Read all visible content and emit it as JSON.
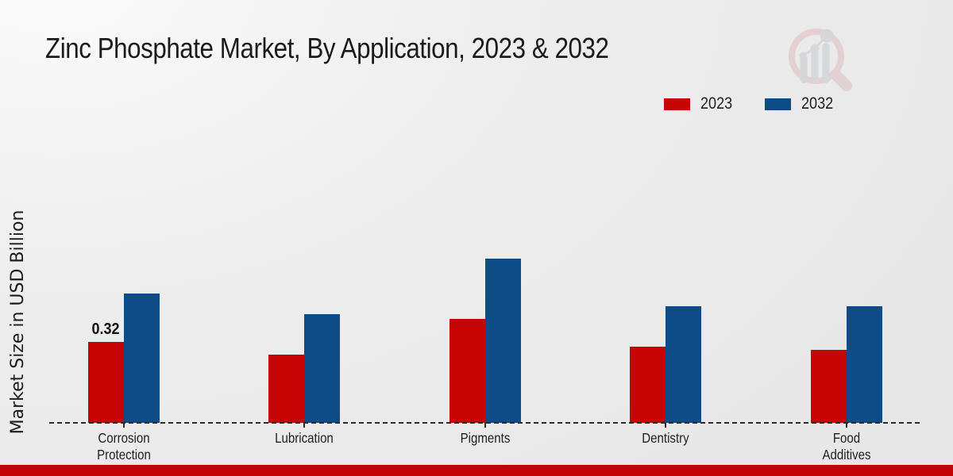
{
  "header": {
    "title": "Zinc Phosphate Market, By Application, 2023 & 2032"
  },
  "branding": {
    "logo_icon": "bar-chart-magnifier-watermark-logo"
  },
  "colors": {
    "series_2023": "#c80505",
    "series_2032": "#0e4c87",
    "footer_bar": "#c20404",
    "baseline": "#2a2a2a",
    "text": "#1b1b1b",
    "logo_ring_pink": "#e0bcc0",
    "logo_bars_gray": "#c6c8cc"
  },
  "chart_data": {
    "type": "bar",
    "title": "Zinc Phosphate Market, By Application, 2023 & 2032",
    "xlabel": "",
    "ylabel": "Market Size in USD Billion",
    "categories": [
      "Corrosion Protection",
      "Lubrication",
      "Pigments",
      "Dentistry",
      "Food Additives"
    ],
    "series": [
      {
        "name": "2023",
        "color": "#c80505",
        "values": [
          0.32,
          0.27,
          0.41,
          0.3,
          0.29
        ]
      },
      {
        "name": "2032",
        "color": "#0e4c87",
        "values": [
          0.51,
          0.43,
          0.65,
          0.46,
          0.46
        ]
      }
    ],
    "bar_labels": [
      {
        "series": "2023",
        "category": "Corrosion Protection",
        "text": "0.32"
      }
    ],
    "ylim": [
      0,
      0.7
    ],
    "grid": false,
    "axis_style": "dashed-baseline-only",
    "legend_position": "upper right"
  }
}
